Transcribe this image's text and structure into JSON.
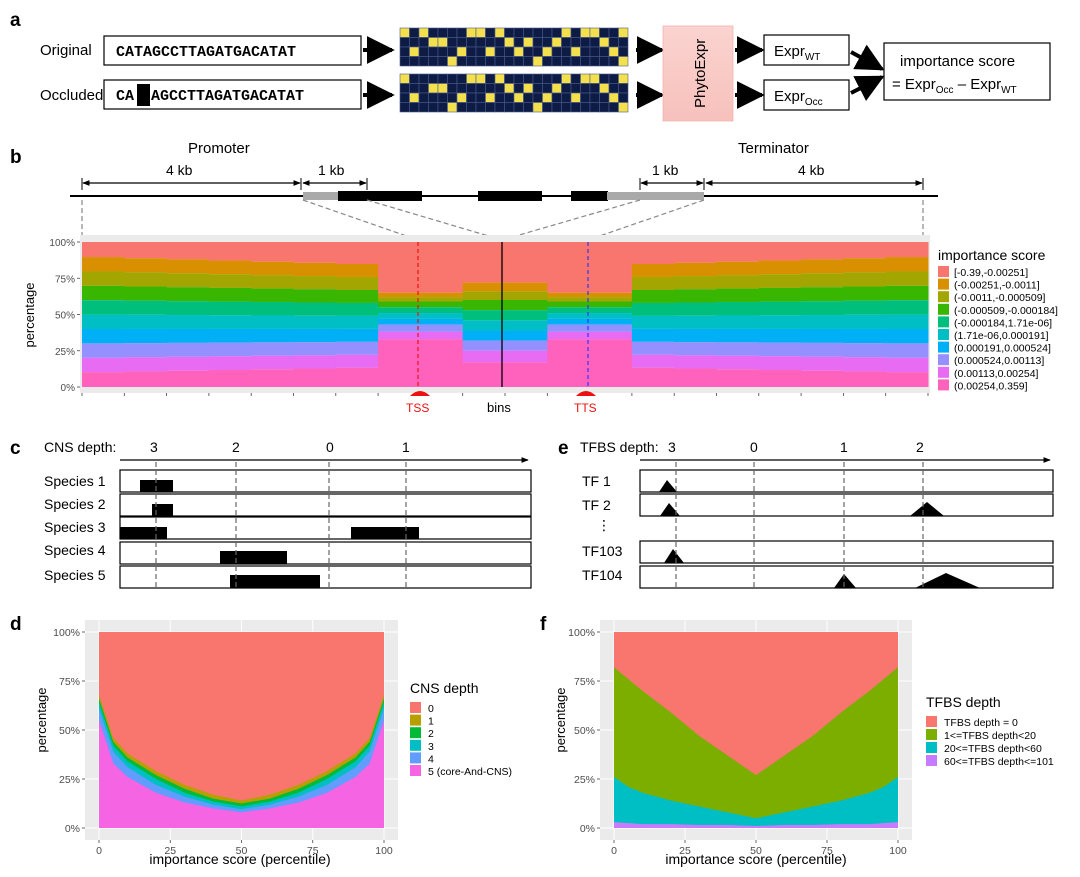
{
  "panels": {
    "a": "a",
    "b": "b",
    "c": "c",
    "d": "d",
    "e": "e",
    "f": "f"
  },
  "panel_a": {
    "original_label": "Original",
    "occluded_label": "Occluded",
    "original_seq": "CATAGCCTTAGATGACATAT",
    "occluded_prefix": "CA",
    "occluded_suffix": "AGCCTTAGATGACATAT",
    "model_label": "PhytoExpr",
    "expr_main": "Expr",
    "expr_wt_sub": "WT",
    "expr_occ_sub": "Occ",
    "score_line1": "importance score",
    "score_eq_prefix": "= Expr",
    "score_eq_mid": " – Expr",
    "onehot_original": [
      [
        1,
        0,
        1,
        0,
        0,
        0,
        0,
        1,
        1,
        0,
        1,
        0,
        0,
        0,
        0,
        0,
        0,
        1,
        0,
        1,
        1,
        0,
        0,
        1
      ],
      [
        0,
        0,
        0,
        1,
        1,
        0,
        0,
        0,
        0,
        0,
        0,
        1,
        0,
        1,
        0,
        0,
        1,
        0,
        0,
        0,
        0,
        1,
        0,
        0
      ],
      [
        0,
        1,
        0,
        0,
        0,
        0,
        1,
        0,
        0,
        1,
        0,
        0,
        1,
        0,
        0,
        1,
        0,
        0,
        1,
        0,
        0,
        0,
        1,
        0
      ],
      [
        0,
        0,
        0,
        0,
        0,
        1,
        0,
        0,
        0,
        0,
        0,
        0,
        0,
        0,
        1,
        0,
        0,
        0,
        0,
        0,
        0,
        0,
        0,
        1
      ]
    ],
    "onehot_occluded": [
      [
        1,
        0,
        0,
        0,
        0,
        0,
        0,
        1,
        1,
        0,
        1,
        0,
        0,
        0,
        0,
        0,
        0,
        1,
        0,
        1,
        1,
        0,
        0,
        1
      ],
      [
        0,
        0,
        0,
        1,
        1,
        0,
        0,
        0,
        0,
        0,
        0,
        1,
        0,
        1,
        0,
        0,
        1,
        0,
        0,
        0,
        0,
        1,
        0,
        0
      ],
      [
        0,
        1,
        0,
        0,
        0,
        0,
        1,
        0,
        0,
        1,
        0,
        0,
        1,
        0,
        0,
        1,
        0,
        0,
        1,
        0,
        0,
        0,
        1,
        0
      ],
      [
        0,
        0,
        0,
        0,
        0,
        1,
        0,
        0,
        0,
        0,
        0,
        0,
        0,
        0,
        1,
        0,
        0,
        0,
        0,
        0,
        0,
        0,
        0,
        1
      ]
    ]
  },
  "panel_b": {
    "promoter": "Promoter",
    "terminator": "Terminator",
    "dist_4kb": "4 kb",
    "dist_1kb": "1 kb",
    "tss": "TSS",
    "tts": "TTS",
    "xlabel": "bins",
    "ylabel": "percentage",
    "yticks": [
      "0%",
      "25%",
      "50%",
      "75%",
      "100%"
    ],
    "legend_title": "importance score",
    "legend": [
      {
        "label": "[-0.39,-0.00251]",
        "color": "#F8766D"
      },
      {
        "label": "(-0.00251,-0.0011]",
        "color": "#D89000"
      },
      {
        "label": "(-0.0011,-0.000509]",
        "color": "#A3A500"
      },
      {
        "label": "(-0.000509,-0.000184]",
        "color": "#39B600"
      },
      {
        "label": "(-0.000184,1.71e-06]",
        "color": "#00BF7D"
      },
      {
        "label": "(1.71e-06,0.000191]",
        "color": "#00BFC4"
      },
      {
        "label": "(0.000191,0.000524]",
        "color": "#00B0F6"
      },
      {
        "label": "(0.000524,0.00113]",
        "color": "#9590FF"
      },
      {
        "label": "(0.00113,0.00254]",
        "color": "#E76BF3"
      },
      {
        "label": "(0.00254,0.359]",
        "color": "#FF62BC"
      }
    ]
  },
  "panel_c": {
    "depth_label": "CNS depth:",
    "depths": [
      "3",
      "2",
      "0",
      "1"
    ],
    "species": [
      "Species 1",
      "Species 2",
      "Species 3",
      "Species 4",
      "Species 5"
    ]
  },
  "panel_e": {
    "depth_label": "TFBS depth:",
    "depths": [
      "3",
      "0",
      "1",
      "2"
    ],
    "tfs": [
      "TF 1",
      "TF 2",
      "TF103",
      "TF104"
    ]
  },
  "panel_d": {
    "chart_data": {
      "type": "area",
      "xlabel": "importance score (percentile)",
      "ylabel": "percentage",
      "xticks": [
        "0",
        "25",
        "50",
        "75",
        "100"
      ],
      "yticks": [
        "0%",
        "25%",
        "50%",
        "75%",
        "100%"
      ],
      "legend_title": "CNS depth",
      "series": [
        {
          "name": "0",
          "color": "#F8766D"
        },
        {
          "name": "1",
          "color": "#B79F00"
        },
        {
          "name": "2",
          "color": "#00BA38"
        },
        {
          "name": "3",
          "color": "#00BFC4"
        },
        {
          "name": "4",
          "color": "#619CFF"
        },
        {
          "name": "5",
          "label": "5 (core-And-CNS)",
          "color": "#F564E3"
        }
      ],
      "x": [
        0,
        5,
        10,
        20,
        30,
        40,
        50,
        60,
        70,
        80,
        90,
        95,
        100
      ],
      "cumulative_tops": {
        "1": [
          68,
          46,
          38,
          29,
          22,
          17,
          14,
          17,
          22,
          29,
          38,
          46,
          68
        ],
        "2": [
          66,
          44,
          36,
          27,
          20,
          15,
          12.5,
          15,
          20,
          27,
          36,
          44,
          66
        ],
        "3": [
          64,
          42,
          34,
          25,
          18,
          13.5,
          11,
          13.5,
          18,
          25,
          34,
          42,
          64
        ],
        "4": [
          61,
          39,
          31,
          22,
          16,
          12,
          9.5,
          12,
          16,
          22,
          31,
          39,
          61
        ],
        "5": [
          55,
          33,
          26,
          18,
          13,
          10,
          8,
          10,
          13,
          18,
          26,
          33,
          55
        ]
      }
    }
  },
  "panel_f": {
    "chart_data": {
      "type": "area",
      "xlabel": "importance score (percentile)",
      "ylabel": "percentage",
      "xticks": [
        "0",
        "25",
        "50",
        "75",
        "100"
      ],
      "yticks": [
        "0%",
        "25%",
        "50%",
        "75%",
        "100%"
      ],
      "legend_title": "TFBS depth",
      "series": [
        {
          "name": "TFBS depth = 0",
          "color": "#F8766D"
        },
        {
          "name": "1<=TFBS depth<20",
          "color": "#7CAE00"
        },
        {
          "name": "20<=TFBS depth<60",
          "color": "#00BFC4"
        },
        {
          "name": "60<=TFBS depth<=101",
          "color": "#C77CFF"
        }
      ],
      "x": [
        0,
        5,
        10,
        20,
        30,
        40,
        50,
        60,
        70,
        80,
        90,
        95,
        100
      ],
      "cumulative_tops": {
        "1": [
          82,
          76,
          70,
          59,
          47,
          37,
          27,
          37,
          47,
          59,
          70,
          76,
          82
        ],
        "2": [
          26,
          21,
          18,
          14,
          11,
          8,
          5,
          8,
          11,
          14,
          18,
          21,
          26
        ],
        "3": [
          3,
          2.5,
          2,
          2,
          1.5,
          1.5,
          1,
          1.5,
          1.5,
          2,
          2,
          2.5,
          3
        ]
      }
    }
  }
}
